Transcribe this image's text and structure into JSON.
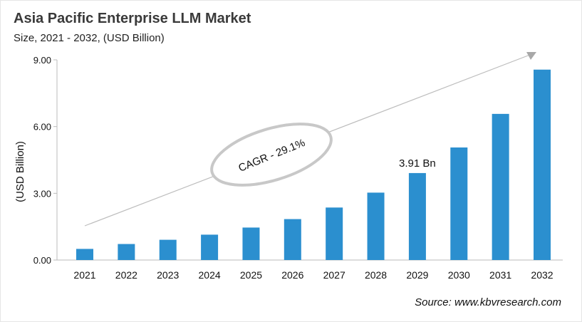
{
  "chart_data": {
    "type": "bar",
    "title": "Asia Pacific Enterprise LLM Market",
    "subtitle": "Size, 2021 - 2032, (USD Billion)",
    "ylabel": "(USD Billion)",
    "xlabel": "",
    "categories": [
      "2021",
      "2022",
      "2023",
      "2024",
      "2025",
      "2026",
      "2027",
      "2028",
      "2029",
      "2030",
      "2031",
      "2032"
    ],
    "values": [
      0.5,
      0.72,
      0.91,
      1.14,
      1.46,
      1.84,
      2.36,
      3.03,
      3.91,
      5.06,
      6.57,
      8.56
    ],
    "ylim": [
      0,
      9
    ],
    "yticks": [
      "0.00",
      "3.00",
      "6.00",
      "9.00"
    ],
    "ytick_values": [
      0,
      3,
      6,
      9
    ],
    "grid": false,
    "bar_color": "#2b8fcf",
    "data_label": {
      "category": "2029",
      "text": "3.91 Bn"
    },
    "annotation": "CAGR - 29.1%",
    "source": "Source: www.kbvresearch.com"
  }
}
